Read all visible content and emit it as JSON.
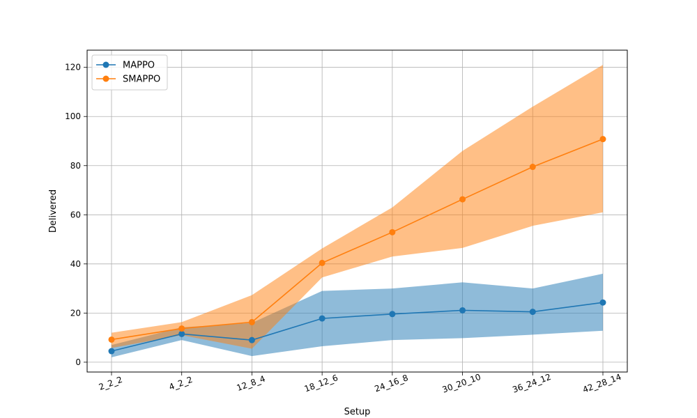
{
  "chart_data": {
    "type": "line",
    "title": "",
    "xlabel": "Setup",
    "ylabel": "Delivered",
    "categories": [
      "2_2_2",
      "4_2_2",
      "12_8_4",
      "18_12_6",
      "24_16_8",
      "30_20_10",
      "36_24_12",
      "42_28_14"
    ],
    "ylim": [
      -4,
      127
    ],
    "yticks": [
      0,
      20,
      40,
      60,
      80,
      100,
      120
    ],
    "grid": true,
    "legend_position": "top-left",
    "series": [
      {
        "name": "MAPPO",
        "color": "#1f77b4",
        "band_color": "#1f77b4",
        "values": [
          4.5,
          11.5,
          9.0,
          17.8,
          19.6,
          21.1,
          20.5,
          24.3
        ],
        "lower": [
          2.0,
          9.0,
          2.5,
          6.5,
          9.0,
          9.8,
          11.2,
          12.8
        ],
        "upper": [
          7.0,
          14.2,
          16.0,
          29.0,
          30.0,
          32.5,
          30.0,
          36.0
        ]
      },
      {
        "name": "SMAPPO",
        "color": "#ff7f0e",
        "band_color": "#ffbb78",
        "values": [
          9.2,
          13.7,
          16.3,
          40.4,
          52.9,
          66.3,
          79.5,
          90.8
        ],
        "lower": [
          5.8,
          11.0,
          5.5,
          34.5,
          43.0,
          46.5,
          55.5,
          61.0
        ],
        "upper": [
          12.0,
          16.3,
          27.3,
          46.3,
          63.0,
          86.0,
          104.0,
          121.0
        ]
      }
    ]
  }
}
